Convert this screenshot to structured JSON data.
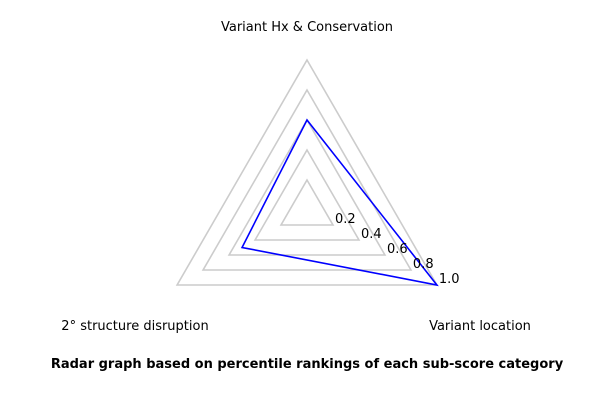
{
  "caption": "Radar graph based on percentile rankings of each sub-score category",
  "colors": {
    "grid": "#cccccc",
    "series": "#0000ff"
  },
  "chart_data": {
    "type": "radar",
    "axes": [
      "Variant Hx & Conservation",
      "Variant location",
      "2° structure disruption"
    ],
    "rlim": [
      0,
      1.0
    ],
    "rticks": [
      "0.2",
      "0.4",
      "0.6",
      "0.8",
      "1.0"
    ],
    "rtick_values": [
      0.2,
      0.4,
      0.6,
      0.8,
      1.0
    ],
    "series": [
      {
        "values": [
          0.6,
          1.0,
          0.5
        ]
      }
    ],
    "grid": true
  }
}
